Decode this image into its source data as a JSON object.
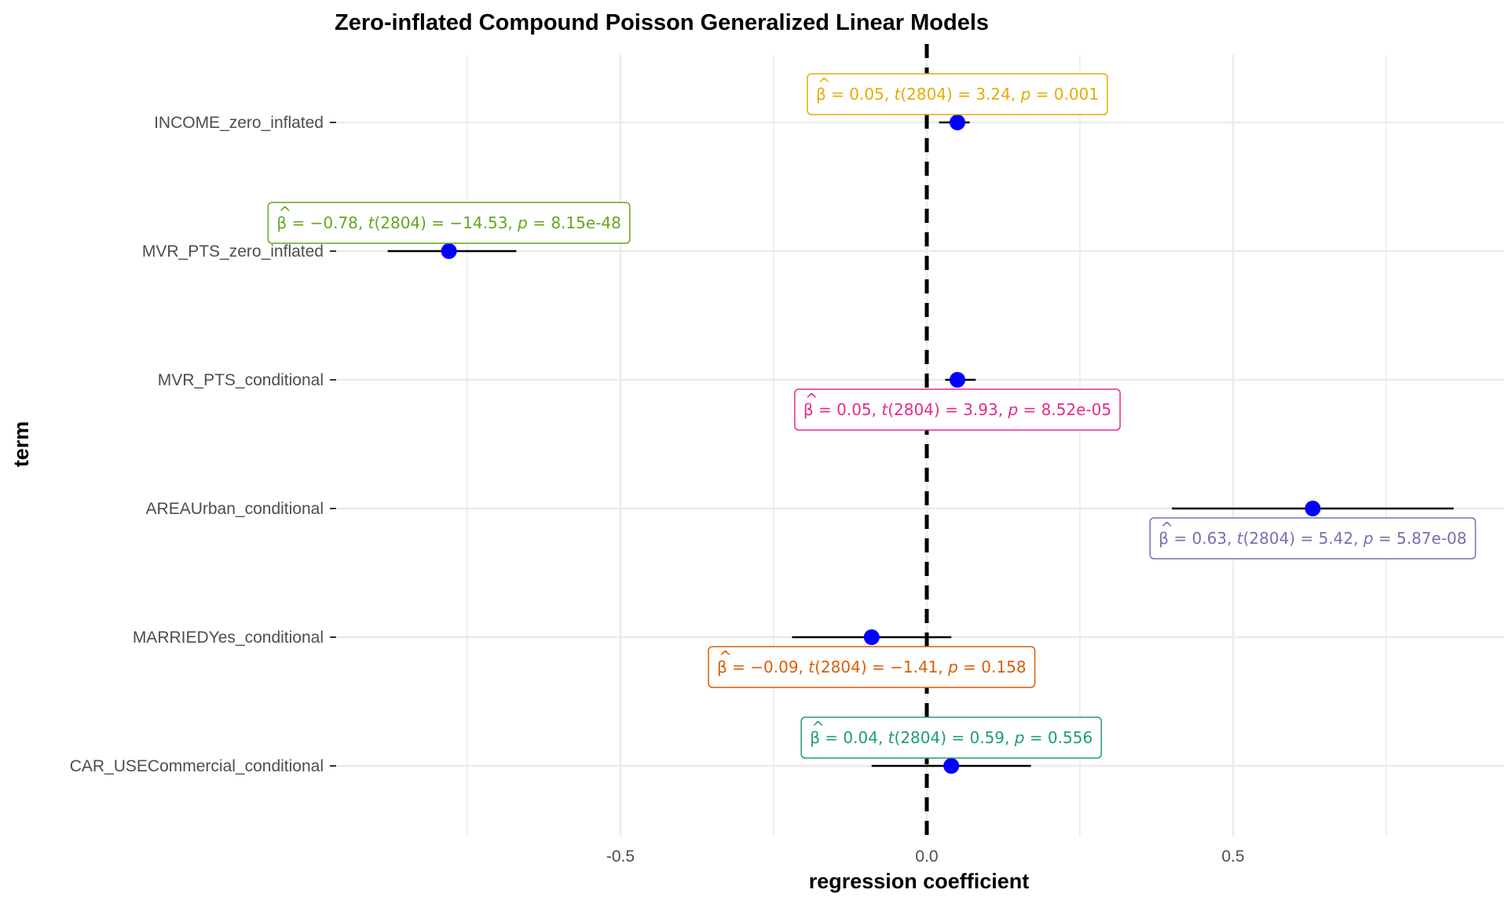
{
  "chart_data": {
    "type": "scatter",
    "subtype": "coefficient-forest-plot",
    "title": "Zero-inflated Compound Poisson Generalized Linear Models",
    "xlabel": "regression coefficient",
    "ylabel": "term",
    "xlim": [
      -0.98,
      0.94
    ],
    "x_ticks": [
      -0.5,
      0.0,
      0.5
    ],
    "x_tick_labels": [
      "-0.5",
      "0.0",
      "0.5"
    ],
    "grid": true,
    "reference_line": 0,
    "point_color": "#0000ff",
    "terms": [
      {
        "term": "INCOME_zero_inflated",
        "estimate": 0.05,
        "conf_low": 0.02,
        "conf_high": 0.07,
        "label": {
          "beta": "0.05",
          "df": "2804",
          "t": "3.24",
          "p": "0.001"
        },
        "label_color": "#e6ab02",
        "label_side": "above"
      },
      {
        "term": "MVR_PTS_zero_inflated",
        "estimate": -0.78,
        "conf_low": -0.88,
        "conf_high": -0.67,
        "label": {
          "beta": "−0.78",
          "df": "2804",
          "t": "−14.53",
          "p": "8.15e-48"
        },
        "label_color": "#66a61e",
        "label_side": "above"
      },
      {
        "term": "MVR_PTS_conditional",
        "estimate": 0.05,
        "conf_low": 0.03,
        "conf_high": 0.08,
        "label": {
          "beta": "0.05",
          "df": "2804",
          "t": "3.93",
          "p": "8.52e-05"
        },
        "label_color": "#e7298a",
        "label_side": "below"
      },
      {
        "term": "AREAUrban_conditional",
        "estimate": 0.63,
        "conf_low": 0.4,
        "conf_high": 0.86,
        "label": {
          "beta": "0.63",
          "df": "2804",
          "t": "5.42",
          "p": "5.87e-08"
        },
        "label_color": "#7570b3",
        "label_side": "below"
      },
      {
        "term": "MARRIEDYes_conditional",
        "estimate": -0.09,
        "conf_low": -0.22,
        "conf_high": 0.04,
        "label": {
          "beta": "−0.09",
          "df": "2804",
          "t": "−1.41",
          "p": "0.158"
        },
        "label_color": "#d95f02",
        "label_side": "below"
      },
      {
        "term": "CAR_USECommercial_conditional",
        "estimate": 0.04,
        "conf_low": -0.09,
        "conf_high": 0.17,
        "label": {
          "beta": "0.04",
          "df": "2804",
          "t": "0.59",
          "p": "0.556"
        },
        "label_color": "#1b9e77",
        "label_side": "above"
      }
    ]
  }
}
